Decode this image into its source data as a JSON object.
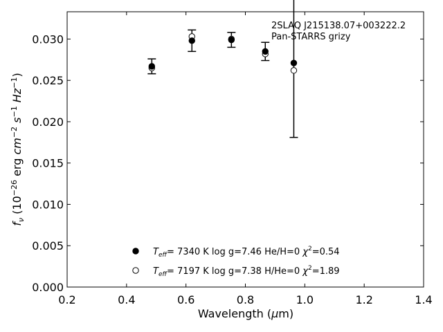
{
  "chart_data": {
    "type": "scatter",
    "title": "",
    "xlabel": "Wavelength (μm)",
    "ylabel": "f_ν (10^-26 erg cm^-2 s^-1 Hz^-1)",
    "xlim": [
      0.2,
      1.4
    ],
    "ylim": [
      0.0,
      0.0333
    ],
    "x_ticks": [
      "0.2",
      "0.4",
      "0.6",
      "0.8",
      "1.0",
      "1.2",
      "1.4"
    ],
    "y_ticks": [
      "0.000",
      "0.005",
      "0.010",
      "0.015",
      "0.020",
      "0.025",
      "0.030"
    ],
    "grid": false,
    "annotation": [
      "2SLAQ J215138.07+003222.2",
      "Pan-STARRS grizy"
    ],
    "observed": {
      "marker": "filled-circle",
      "x": [
        0.485,
        0.62,
        0.753,
        0.867,
        0.963
      ],
      "y": [
        0.0267,
        0.0298,
        0.0299,
        0.0285,
        0.0271
      ],
      "yerr": [
        0.0009,
        0.0013,
        0.0009,
        0.0011,
        0.009
      ]
    },
    "model": {
      "marker": "open-circle",
      "x": [
        0.485,
        0.62,
        0.753,
        0.867,
        0.963
      ],
      "y": [
        0.0265,
        0.0303,
        0.03,
        0.0282,
        0.0262
      ]
    },
    "legend": [
      {
        "marker": "filled-circle",
        "teff": "7340 K",
        "logg": "log g=7.46",
        "comp": "He/H=0",
        "chi": "=0.54"
      },
      {
        "marker": "open-circle",
        "teff": "7197 K",
        "logg": "log g=7.38",
        "comp": "H/He=0",
        "chi": "=1.89"
      }
    ]
  }
}
